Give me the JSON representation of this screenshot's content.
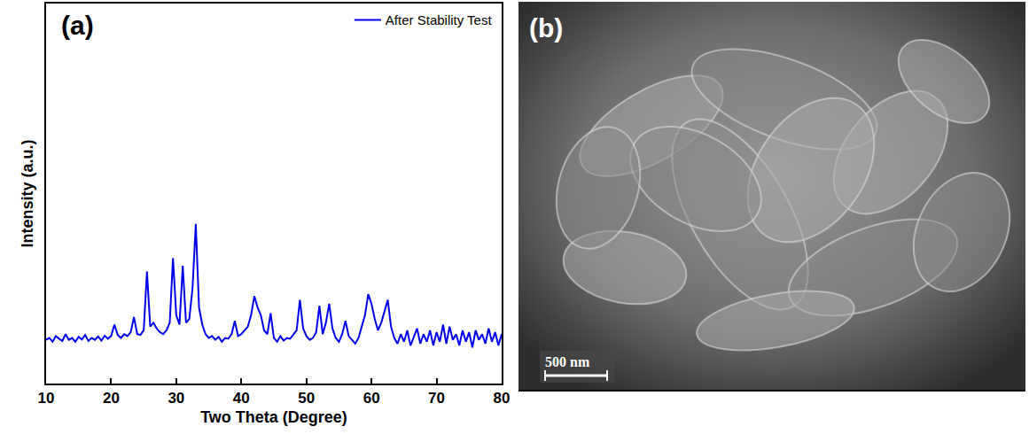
{
  "chart_data": {
    "type": "line",
    "x_label": "Two Theta (Degree)",
    "y_label": "Intensity (a.u.)",
    "annotations": [
      "(a)"
    ],
    "x": [
      10,
      10.5,
      11,
      11.5,
      12,
      12.5,
      13,
      13.5,
      14,
      14.5,
      15,
      15.5,
      16,
      16.5,
      17,
      17.5,
      18,
      18.5,
      19,
      19.5,
      20,
      20.5,
      21,
      21.5,
      22,
      22.5,
      23,
      23.5,
      24,
      24.5,
      25,
      25.5,
      26,
      26.5,
      27,
      27.5,
      28,
      28.5,
      29,
      29.5,
      30,
      30.5,
      31,
      31.5,
      32,
      32.5,
      33,
      33.5,
      34,
      34.5,
      35,
      35.5,
      36,
      36.5,
      37,
      37.5,
      38,
      38.5,
      39,
      39.5,
      40,
      40.5,
      41,
      41.5,
      42,
      42.5,
      43,
      43.5,
      44,
      44.5,
      45,
      45.5,
      46,
      46.5,
      47,
      47.5,
      48,
      48.5,
      49,
      49.5,
      50,
      50.5,
      51,
      51.5,
      52,
      52.5,
      53,
      53.5,
      54,
      54.5,
      55,
      55.5,
      56,
      56.5,
      57,
      57.5,
      58,
      58.5,
      59,
      59.5,
      60,
      60.5,
      61,
      61.5,
      62,
      62.5,
      63,
      63.5,
      64,
      64.5,
      65,
      65.5,
      66,
      66.5,
      67,
      67.5,
      68,
      68.5,
      69,
      69.5,
      70,
      70.5,
      71,
      71.5,
      72,
      72.5,
      73,
      73.5,
      74,
      74.5,
      75,
      75.5,
      76,
      76.5,
      77,
      77.5,
      78,
      78.5,
      79,
      79.5,
      80
    ],
    "series": [
      {
        "name": "After Stability Test",
        "color": "#0000ee",
        "values": [
          11.5,
          12,
          11,
          12.5,
          11.8,
          11.2,
          13,
          11.5,
          12,
          11,
          12.3,
          11.6,
          12.8,
          11.2,
          12,
          11.5,
          12.4,
          11.3,
          12.6,
          11.8,
          12.5,
          15.5,
          12.8,
          12,
          13,
          12.5,
          13.5,
          17.5,
          13,
          12.8,
          14,
          29.5,
          15,
          16,
          14.5,
          13.5,
          13,
          14,
          16,
          33,
          18,
          15.5,
          31,
          16,
          17,
          25,
          42,
          20,
          15.5,
          13,
          12,
          12.5,
          11.5,
          12.3,
          11,
          12,
          11.8,
          13,
          16.5,
          12.5,
          13,
          14,
          15,
          18,
          23,
          20,
          18,
          14,
          13,
          18.5,
          12,
          11,
          12.5,
          11.3,
          12,
          11.8,
          13,
          14,
          22,
          14.5,
          12.5,
          11.5,
          12,
          13.5,
          20.5,
          13,
          16,
          21,
          14.5,
          12,
          11,
          13,
          16.5,
          12.5,
          11.5,
          10.5,
          12,
          15,
          18,
          23.5,
          21,
          17,
          14,
          16,
          19,
          22,
          15,
          12,
          10.5,
          13,
          11,
          14,
          10,
          12.5,
          14.5,
          10.5,
          13,
          11,
          14,
          10,
          13.5,
          11,
          15.5,
          10.5,
          15,
          11.5,
          13,
          10,
          14,
          11,
          13.5,
          9.5,
          14,
          11.5,
          13,
          10.5,
          14.5,
          11,
          13.5,
          10,
          13
        ]
      }
    ],
    "xlim": [
      10,
      80
    ],
    "xticks": [
      10,
      20,
      30,
      40,
      50,
      60,
      70,
      80
    ],
    "ylim": [
      0,
      100
    ],
    "tick_labels": "x",
    "legend": "top right"
  },
  "image": {
    "label": "(b)",
    "scale_bar": "500 nm"
  }
}
